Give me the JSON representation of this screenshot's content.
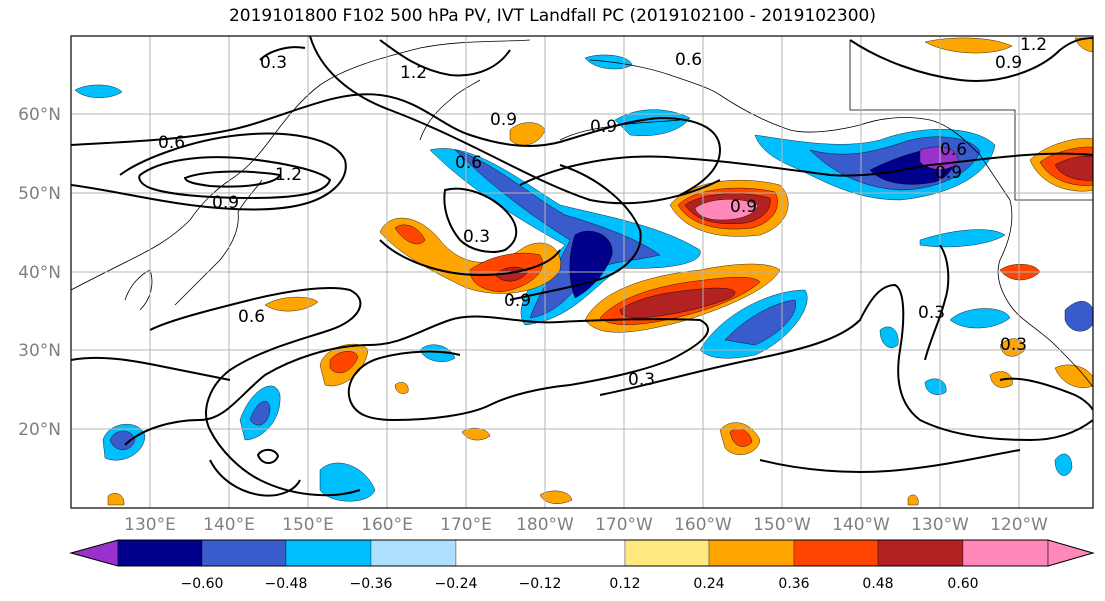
{
  "title": "2019101800 F102 500 hPa PV, IVT Landfall PC (2019102100 - 2019102300)",
  "longitude_labels": [
    "130°E",
    "140°E",
    "150°E",
    "160°E",
    "170°E",
    "180°W",
    "170°W",
    "160°W",
    "150°W",
    "140°W",
    "130°W",
    "120°W"
  ],
  "latitude_labels": [
    "60°N",
    "50°N",
    "40°N",
    "30°N",
    "20°N"
  ],
  "contour_labels": [
    "0.3",
    "1.2",
    "0.6",
    "0.9",
    "0.6",
    "0.9",
    "1.2",
    "0.9",
    "0.6",
    "0.9",
    "0.3",
    "0.9",
    "0.9",
    "0.6",
    "0.3",
    "0.3",
    "0.3",
    "1.2",
    "0.9",
    "0.6"
  ],
  "colorbar": {
    "tick_labels": [
      "−0.60",
      "−0.48",
      "−0.36",
      "−0.24",
      "−0.12",
      "0.12",
      "0.24",
      "0.36",
      "0.48",
      "0.60"
    ],
    "colors": [
      "#9932CC",
      "#00008B",
      "#3A5BCB",
      "#00BFFF",
      "#ADDFFF",
      "#FFFFFF",
      "#FFE97F",
      "#FFA500",
      "#FF4500",
      "#B22222",
      "#FF88B8"
    ]
  },
  "colors": {
    "neg_060": "#9932CC",
    "neg_048": "#00008B",
    "neg_036": "#3A5BCB",
    "neg_024": "#00BFFF",
    "neg_012": "#ADDFFF",
    "pos_012": "#FFE97F",
    "pos_024": "#FFA500",
    "pos_036": "#FF4500",
    "pos_048": "#B22222",
    "pos_060": "#FF88B8"
  }
}
